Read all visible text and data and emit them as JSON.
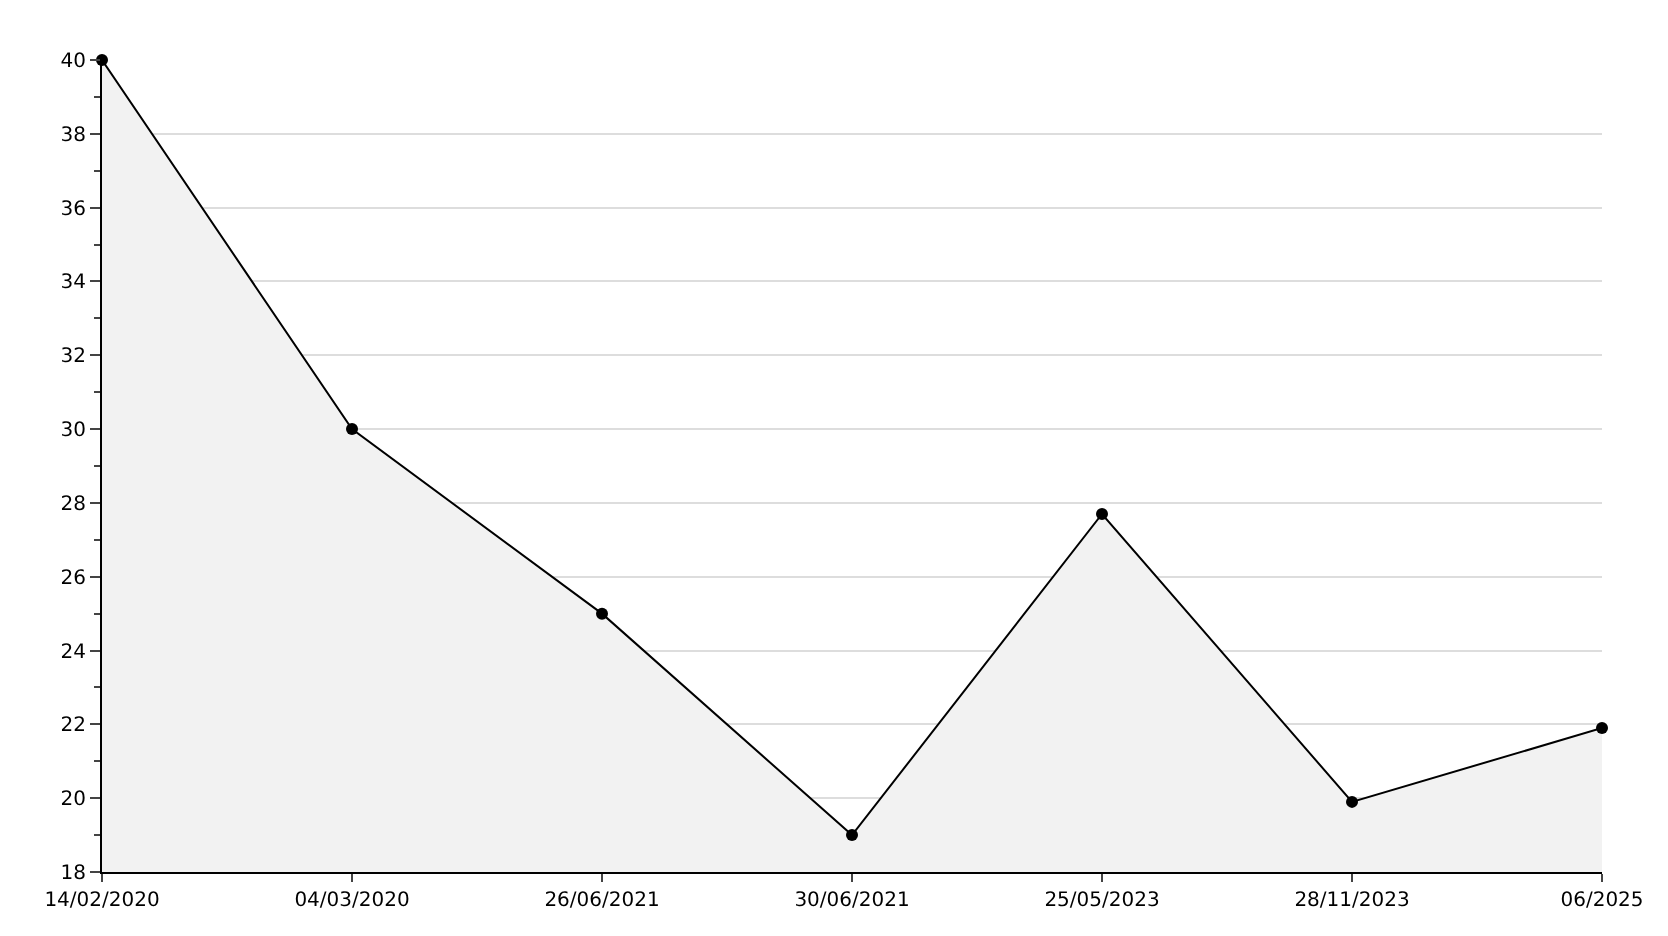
{
  "chart_data": {
    "type": "area",
    "categories": [
      "14/02/2020",
      "04/03/2020",
      "26/06/2021",
      "30/06/2021",
      "25/05/2023",
      "28/11/2023",
      "06/2025"
    ],
    "series": [
      {
        "color": "#000000",
        "values": [
          40,
          30,
          25,
          19,
          27.7,
          19.9,
          21.9
        ]
      }
    ],
    "ylim": [
      18,
      40
    ],
    "yticks": [
      18,
      20,
      22,
      24,
      26,
      28,
      30,
      32,
      34,
      36,
      38,
      40
    ],
    "grid": "y",
    "marker": "circle",
    "line_style": "solid",
    "legend": false
  }
}
